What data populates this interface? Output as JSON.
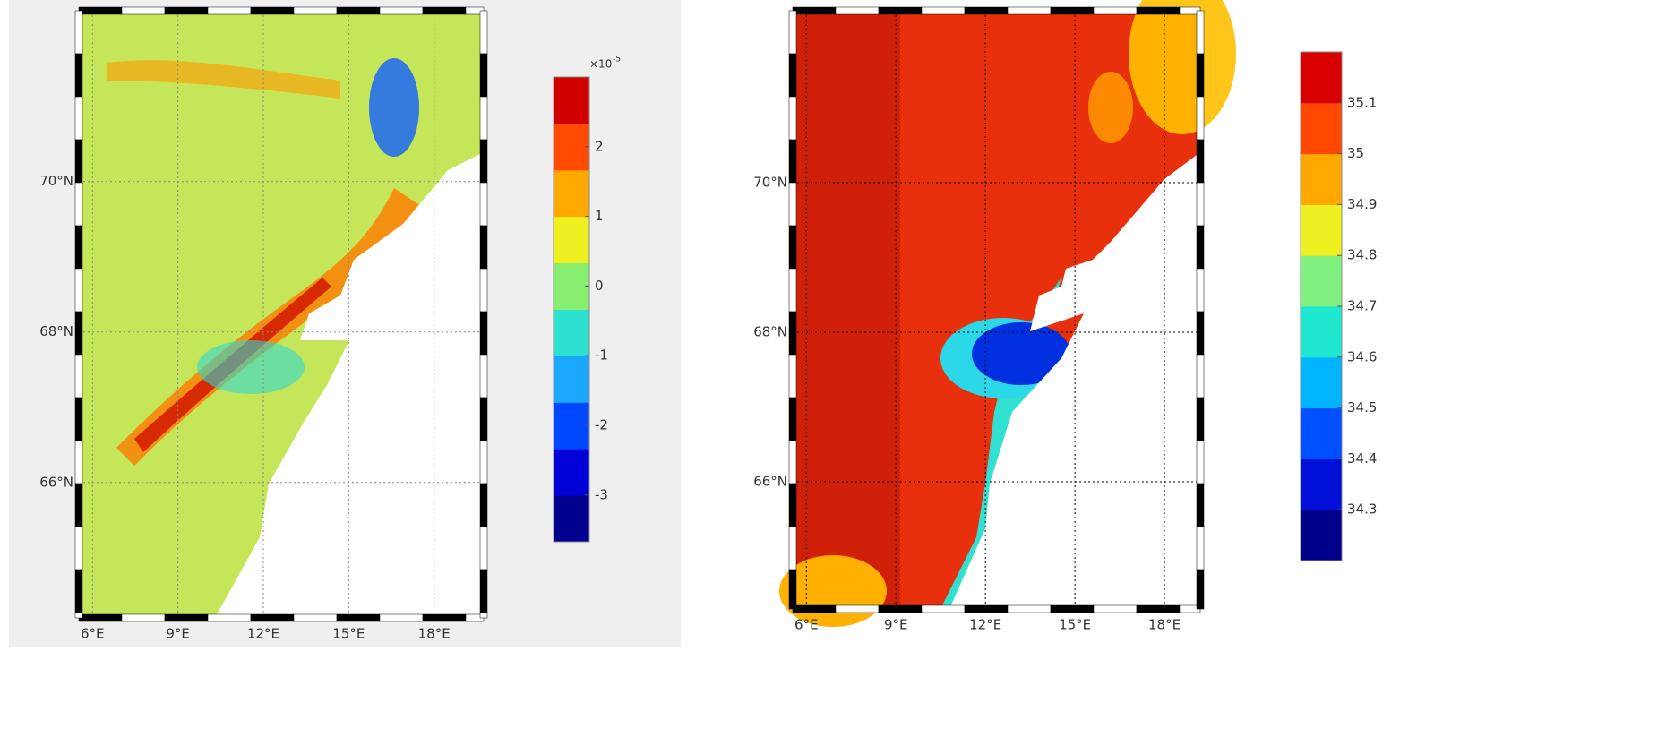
{
  "panels": [
    {
      "xlim": [
        5.52,
        19.74
      ],
      "ylim": [
        64.2,
        72.27
      ],
      "xticks": [
        {
          "value": 6,
          "label": "6°E"
        },
        {
          "value": 9,
          "label": "9°E"
        },
        {
          "value": 12,
          "label": "12°E"
        },
        {
          "value": 15,
          "label": "15°E"
        },
        {
          "value": 18,
          "label": "18°E"
        }
      ],
      "yticks": [
        {
          "value": 66,
          "label": "66°N"
        },
        {
          "value": 68,
          "label": "68°N"
        },
        {
          "value": 70,
          "label": "70°N"
        }
      ],
      "colorbar": {
        "clim": [
          -3.67,
          3
        ],
        "ticks": [
          -3,
          -2,
          -1,
          0,
          1,
          2
        ],
        "multiplier": "×10",
        "exponent": "-5",
        "colors": [
          "#00008f",
          "#0000d8",
          "#0048ff",
          "#1aa8ff",
          "#2ee0d0",
          "#88ee70",
          "#eef020",
          "#ffa800",
          "#ff4a00",
          "#d00000"
        ]
      }
    },
    {
      "xlim": [
        5.54,
        19.2
      ],
      "ylim": [
        64.3,
        72.3
      ],
      "xticks": [
        {
          "value": 6,
          "label": "6°E"
        },
        {
          "value": 9,
          "label": "9°E"
        },
        {
          "value": 12,
          "label": "12°E"
        },
        {
          "value": 15,
          "label": "15°E"
        },
        {
          "value": 18,
          "label": "18°E"
        }
      ],
      "yticks": [
        {
          "value": 66,
          "label": "66°N"
        },
        {
          "value": 68,
          "label": "68°N"
        },
        {
          "value": 70,
          "label": "70°N"
        }
      ],
      "colorbar": {
        "clim": [
          34.2,
          35.2
        ],
        "ticks": [
          34.3,
          34.4,
          34.5,
          34.6,
          34.7,
          34.8,
          34.9,
          35,
          35.1
        ],
        "colors": [
          "#00008b",
          "#0010d8",
          "#0050ff",
          "#00b4ff",
          "#20e8d0",
          "#80f080",
          "#eef020",
          "#ffa800",
          "#ff4800",
          "#d80000"
        ]
      }
    }
  ]
}
